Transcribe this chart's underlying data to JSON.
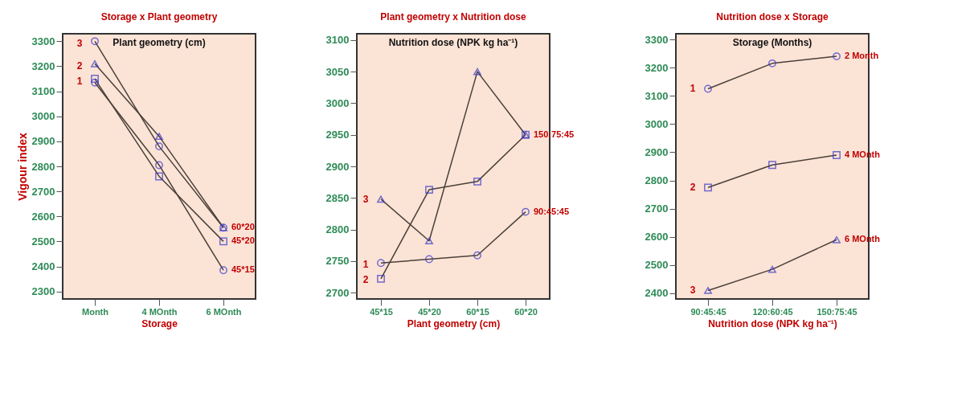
{
  "chart_data": [
    {
      "type": "line",
      "title": "Storage x Plant geometry",
      "xlabel": "Storage",
      "ylabel": "Vigour index",
      "legend_title": "Plant geometry (cm)",
      "categories": [
        "Month",
        "4 MOnth",
        "6 MOnth"
      ],
      "ylim": [
        2270,
        3330
      ],
      "yticks": [
        2300,
        2400,
        2500,
        2600,
        2700,
        2800,
        2900,
        3000,
        3100,
        3200,
        3300
      ],
      "series": [
        {
          "name": "60*20",
          "color": "#4a4038",
          "marker": "circle",
          "values": [
            3300,
            2880,
            2555
          ]
        },
        {
          "color": "#4a4038",
          "marker": "triangle",
          "values": [
            3210,
            2920,
            2555
          ]
        },
        {
          "name": "45*20",
          "color": "#4a4038",
          "marker": "square",
          "values": [
            3150,
            2760,
            2500
          ]
        },
        {
          "name": "45*15",
          "color": "#4a4038",
          "marker": "circle",
          "values": [
            3135,
            2805,
            2385
          ]
        }
      ],
      "annotations": [
        {
          "text": "3",
          "x": "Month",
          "y": 3290
        },
        {
          "text": "2",
          "x": "Month",
          "y": 3200
        },
        {
          "text": "1",
          "x": "Month",
          "y": 3140
        }
      ]
    },
    {
      "type": "line",
      "title": "Plant geometry x Nutrition dose",
      "xlabel": "Plant geometry (cm)",
      "legend_title": "Nutrition dose (NPK kg ha⁻¹)",
      "categories": [
        "45*15",
        "45*20",
        "60*15",
        "60*20"
      ],
      "ylim": [
        2690,
        3110
      ],
      "yticks": [
        2700,
        2750,
        2800,
        2850,
        2900,
        2950,
        3000,
        3050,
        3100
      ],
      "series": [
        {
          "name": "150:75:45",
          "color": "#4a4038",
          "marker": "triangle",
          "values": [
            2848,
            2782,
            3050,
            2950
          ]
        },
        {
          "color": "#4a4038",
          "marker": "square",
          "values": [
            2722,
            2863,
            2876,
            2950
          ]
        },
        {
          "name": "90:45:45",
          "color": "#4a4038",
          "marker": "circle",
          "values": [
            2747,
            2753,
            2759,
            2828
          ]
        }
      ],
      "annotations": [
        {
          "text": "3",
          "x": "45*15",
          "y": 2848
        },
        {
          "text": "1",
          "x": "45*15",
          "y": 2745
        },
        {
          "text": "2",
          "x": "45*15",
          "y": 2720
        }
      ]
    },
    {
      "type": "line",
      "title": "Nutrition dose x Storage",
      "xlabel": "Nutrition dose (NPK kg ha⁻¹)",
      "legend_title": "Storage (Months)",
      "categories": [
        "90:45:45",
        "120:60:45",
        "150:75:45"
      ],
      "ylim": [
        2380,
        3320
      ],
      "yticks": [
        2400,
        2500,
        2600,
        2700,
        2800,
        2900,
        3000,
        3100,
        3200,
        3300
      ],
      "series": [
        {
          "name": "2 Month",
          "color": "#4a4038",
          "marker": "circle",
          "values": [
            3125,
            3215,
            3240
          ]
        },
        {
          "name": "4 MOnth",
          "color": "#4a4038",
          "marker": "square",
          "values": [
            2775,
            2855,
            2890
          ]
        },
        {
          "name": "6 MOnth",
          "color": "#4a4038",
          "marker": "triangle",
          "values": [
            2410,
            2485,
            2590
          ]
        }
      ],
      "annotations": [
        {
          "text": "1",
          "x": "90:45:45",
          "y": 3125
        },
        {
          "text": "2",
          "x": "90:45:45",
          "y": 2775
        },
        {
          "text": "3",
          "x": "90:45:45",
          "y": 2410
        }
      ]
    }
  ]
}
